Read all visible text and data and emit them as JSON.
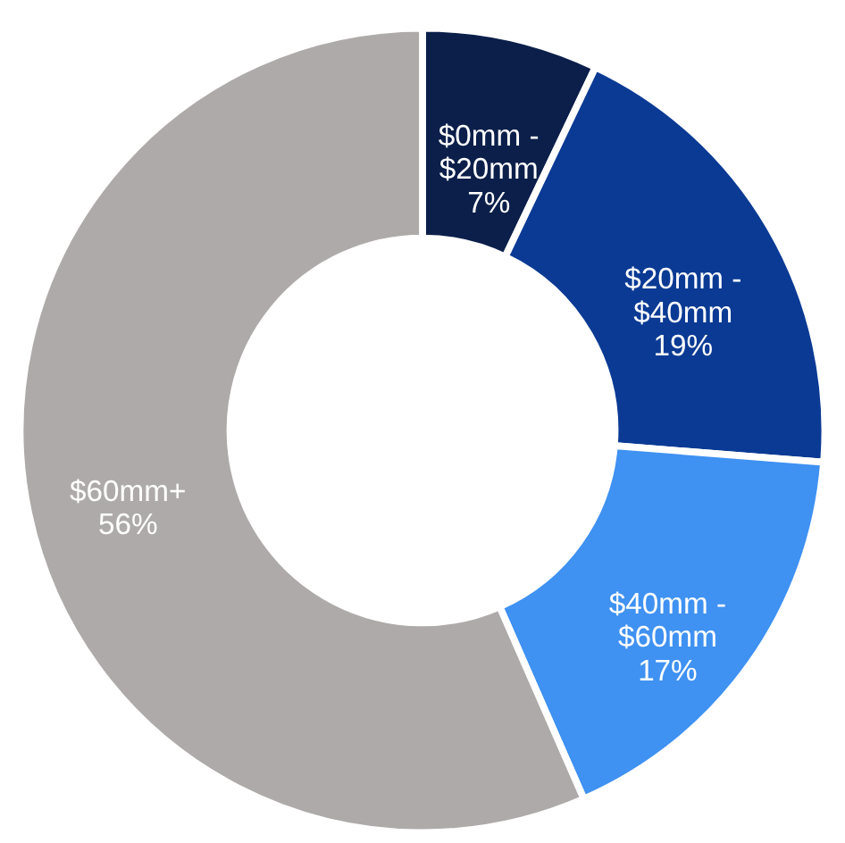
{
  "chart_data": {
    "type": "donut",
    "categories": [
      "$0mm -\n$20mm",
      "$20mm -\n$40mm",
      "$40mm -\n$60mm",
      "$60mm+"
    ],
    "values": [
      7,
      19,
      17,
      56
    ],
    "value_labels": [
      "7%",
      "19%",
      "17%",
      "56%"
    ],
    "colors": [
      "#0b1f4a",
      "#0a3a94",
      "#3f91f2",
      "#aeaaa9"
    ]
  }
}
